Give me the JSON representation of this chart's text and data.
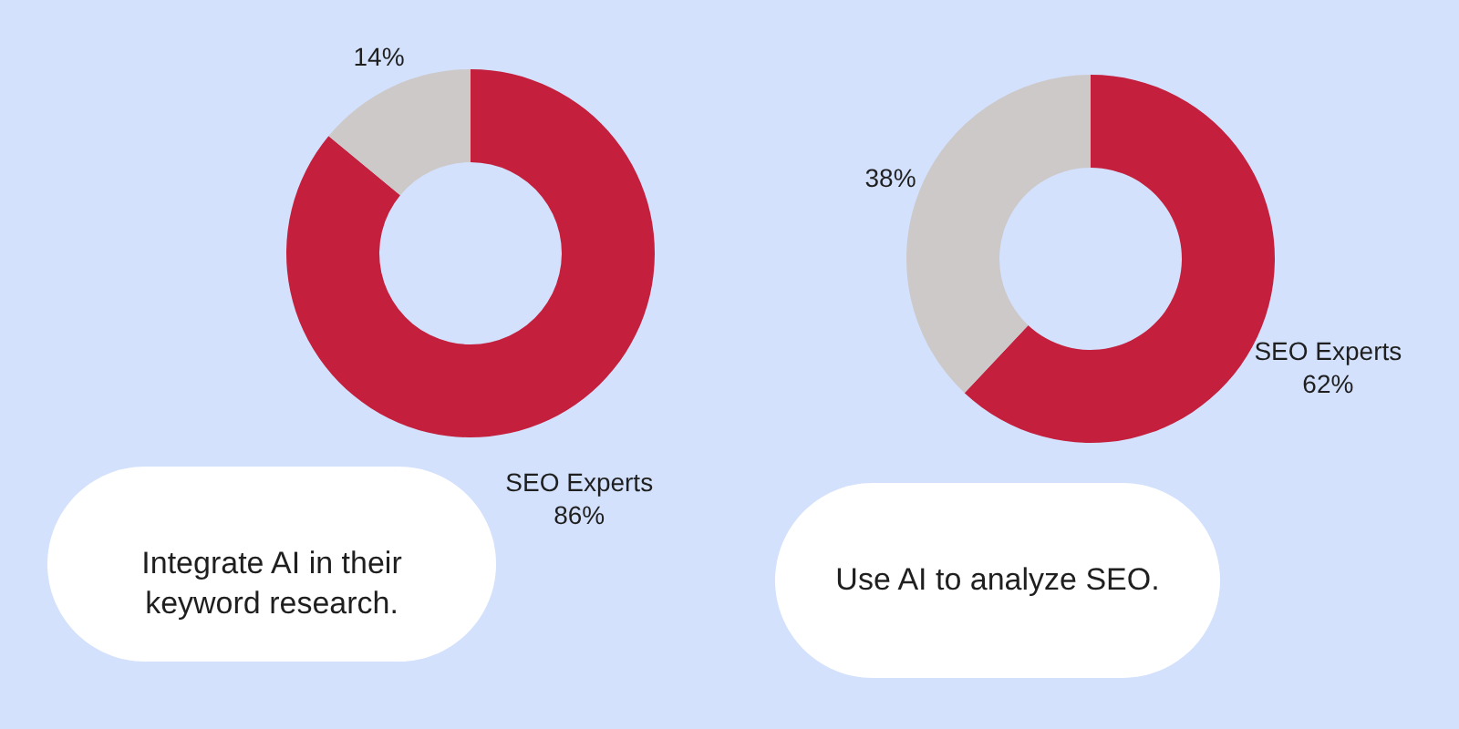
{
  "chart_data": [
    {
      "type": "donut",
      "categories": [
        "SEO Experts",
        null
      ],
      "values": [
        86,
        14
      ],
      "colors": [
        "#c41f3c",
        "#cdc9c9"
      ],
      "value_labels": [
        "86%",
        "14%"
      ],
      "annotations": [
        "Integrate AI in their keyword research."
      ]
    },
    {
      "type": "donut",
      "categories": [
        "SEO Experts",
        null
      ],
      "values": [
        62,
        38
      ],
      "colors": [
        "#c41f3c",
        "#cdc9c9"
      ],
      "value_labels": [
        "62%",
        "38%"
      ],
      "annotations": [
        "Use AI to analyze SEO."
      ]
    }
  ]
}
